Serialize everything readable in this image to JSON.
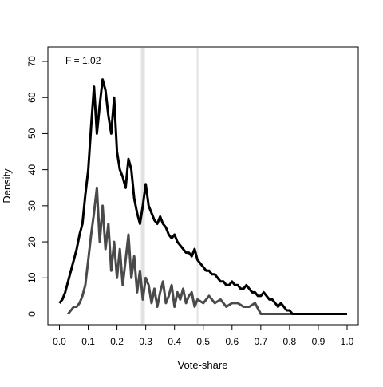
{
  "chart_data": {
    "type": "line",
    "title": "",
    "xlabel": "Vote-share",
    "ylabel": "Density",
    "xlim": [
      0.0,
      1.0
    ],
    "ylim": [
      0,
      70
    ],
    "xticks": [
      "0.0",
      "0.1",
      "0.2",
      "0.3",
      "0.4",
      "0.5",
      "0.6",
      "0.7",
      "0.8",
      "0.9",
      "1.0"
    ],
    "yticks": [
      "0",
      "10",
      "20",
      "30",
      "40",
      "50",
      "60",
      "70"
    ],
    "grid": false,
    "annotation": "F = 1.02",
    "vertical_lines": [
      {
        "x": 0.29,
        "color": "#e2e2e2",
        "style": "thick"
      },
      {
        "x": 0.48,
        "color": "#e2e2e2",
        "style": "thin"
      }
    ],
    "series": [
      {
        "color": "#000000",
        "x": [
          0.0,
          0.01,
          0.02,
          0.03,
          0.04,
          0.05,
          0.06,
          0.07,
          0.08,
          0.09,
          0.1,
          0.11,
          0.12,
          0.13,
          0.14,
          0.15,
          0.16,
          0.17,
          0.18,
          0.19,
          0.2,
          0.21,
          0.22,
          0.23,
          0.24,
          0.25,
          0.26,
          0.27,
          0.28,
          0.29,
          0.3,
          0.31,
          0.32,
          0.33,
          0.34,
          0.35,
          0.36,
          0.37,
          0.38,
          0.39,
          0.4,
          0.41,
          0.42,
          0.43,
          0.44,
          0.45,
          0.46,
          0.47,
          0.48,
          0.49,
          0.5,
          0.51,
          0.52,
          0.53,
          0.54,
          0.55,
          0.56,
          0.57,
          0.58,
          0.59,
          0.6,
          0.61,
          0.62,
          0.63,
          0.64,
          0.65,
          0.66,
          0.67,
          0.68,
          0.69,
          0.7,
          0.71,
          0.72,
          0.73,
          0.74,
          0.75,
          0.76,
          0.77,
          0.78,
          0.79,
          0.8,
          0.81,
          0.85,
          0.9,
          0.95,
          1.0
        ],
        "y": [
          3,
          4,
          6,
          9,
          12,
          15,
          18,
          22,
          25,
          33,
          40,
          52,
          63,
          50,
          58,
          65,
          62,
          55,
          50,
          60,
          45,
          40,
          38,
          35,
          43,
          40,
          32,
          28,
          25,
          30,
          36,
          30,
          28,
          26,
          25,
          27,
          25,
          24,
          22,
          21,
          22,
          20,
          19,
          18,
          17,
          17,
          16,
          18,
          15,
          14,
          13,
          12,
          12,
          11,
          11,
          10,
          9,
          9,
          8,
          8,
          9,
          8,
          8,
          7,
          7,
          8,
          7,
          6,
          6,
          5,
          5,
          6,
          5,
          4,
          4,
          3,
          2,
          3,
          2,
          1,
          1,
          0,
          0,
          0,
          0,
          0
        ]
      },
      {
        "color": "#4a4a4a",
        "x": [
          0.03,
          0.04,
          0.05,
          0.06,
          0.07,
          0.08,
          0.09,
          0.1,
          0.11,
          0.12,
          0.13,
          0.14,
          0.15,
          0.16,
          0.17,
          0.18,
          0.19,
          0.2,
          0.21,
          0.22,
          0.23,
          0.24,
          0.25,
          0.26,
          0.27,
          0.28,
          0.29,
          0.3,
          0.31,
          0.32,
          0.33,
          0.34,
          0.35,
          0.36,
          0.37,
          0.38,
          0.39,
          0.4,
          0.41,
          0.42,
          0.43,
          0.44,
          0.45,
          0.46,
          0.47,
          0.48,
          0.5,
          0.52,
          0.54,
          0.56,
          0.58,
          0.6,
          0.62,
          0.64,
          0.66,
          0.68,
          0.7,
          0.8,
          0.9,
          1.0
        ],
        "y": [
          0,
          1,
          2,
          2,
          3,
          5,
          8,
          15,
          22,
          28,
          35,
          20,
          30,
          18,
          25,
          12,
          20,
          10,
          18,
          8,
          15,
          22,
          10,
          16,
          6,
          12,
          4,
          10,
          8,
          3,
          7,
          2,
          6,
          9,
          3,
          5,
          8,
          2,
          6,
          4,
          7,
          3,
          5,
          6,
          2,
          4,
          3,
          5,
          3,
          4,
          2,
          3,
          3,
          2,
          2,
          3,
          0,
          0,
          0,
          0
        ]
      }
    ]
  }
}
